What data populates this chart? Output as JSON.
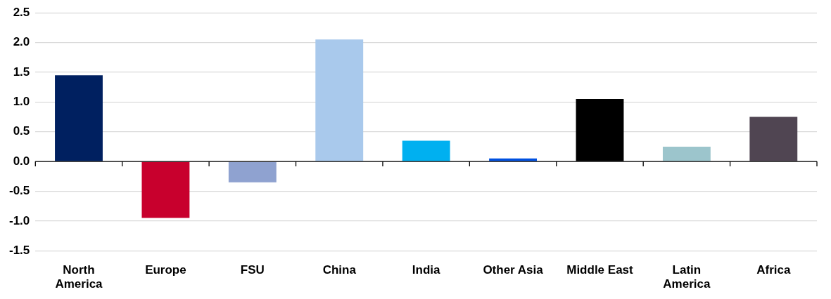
{
  "chart_data": {
    "type": "bar",
    "categories": [
      "North America",
      "Europe",
      "FSU",
      "China",
      "India",
      "Other Asia",
      "Middle East",
      "Latin America",
      "Africa"
    ],
    "values": [
      1.45,
      -0.95,
      -0.35,
      2.05,
      0.35,
      0.05,
      1.05,
      0.25,
      0.75
    ],
    "colors": [
      "#002060",
      "#c8002d",
      "#8fa2d0",
      "#a9c9ec",
      "#00b0f0",
      "#0050e0",
      "#000000",
      "#9cc5cc",
      "#504552"
    ],
    "ylim": [
      -1.5,
      2.5
    ],
    "yticks": [
      {
        "value": -1.5,
        "label": "-1.5"
      },
      {
        "value": -1,
        "label": "-1.0"
      },
      {
        "value": -0.5,
        "label": "-0.5"
      },
      {
        "value": 0,
        "label": "0.0"
      },
      {
        "value": 0.5,
        "label": "0.5"
      },
      {
        "value": 1,
        "label": "1.0"
      },
      {
        "value": 1.5,
        "label": "1.5"
      },
      {
        "value": 2,
        "label": "2.0"
      },
      {
        "value": 2.5,
        "label": "2.5"
      }
    ],
    "grid": "y"
  }
}
